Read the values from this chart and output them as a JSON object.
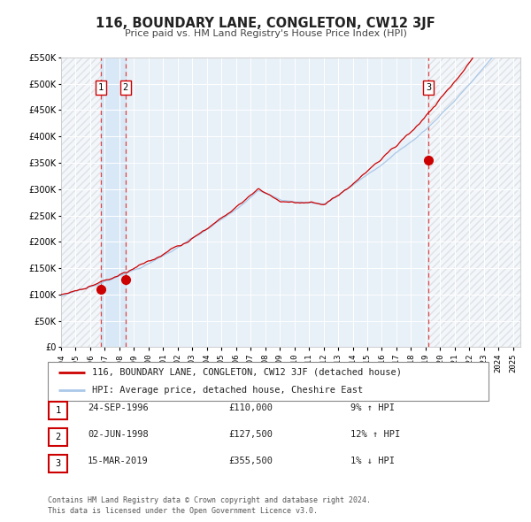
{
  "title": "116, BOUNDARY LANE, CONGLETON, CW12 3JF",
  "subtitle": "Price paid vs. HM Land Registry's House Price Index (HPI)",
  "xmin": 1994.0,
  "xmax": 2025.5,
  "ymin": 0,
  "ymax": 550000,
  "yticks": [
    0,
    50000,
    100000,
    150000,
    200000,
    250000,
    300000,
    350000,
    400000,
    450000,
    500000,
    550000
  ],
  "ytick_labels": [
    "£0",
    "£50K",
    "£100K",
    "£150K",
    "£200K",
    "£250K",
    "£300K",
    "£350K",
    "£400K",
    "£450K",
    "£500K",
    "£550K"
  ],
  "xticks": [
    1994,
    1995,
    1996,
    1997,
    1998,
    1999,
    2000,
    2001,
    2002,
    2003,
    2004,
    2005,
    2006,
    2007,
    2008,
    2009,
    2010,
    2011,
    2012,
    2013,
    2014,
    2015,
    2016,
    2017,
    2018,
    2019,
    2020,
    2021,
    2022,
    2023,
    2024,
    2025
  ],
  "bg_color": "#e8f0f8",
  "grid_color": "#ffffff",
  "sale_color": "#cc0000",
  "hpi_color": "#aac8e8",
  "vline_color": "#dd4444",
  "marker_color": "#cc0000",
  "shade_between_color": "#d0e4f5",
  "transactions": [
    {
      "date_dec": 1996.73,
      "price": 110000,
      "label": "1"
    },
    {
      "date_dec": 1998.42,
      "price": 127500,
      "label": "2"
    },
    {
      "date_dec": 2019.2,
      "price": 355500,
      "label": "3"
    }
  ],
  "legend_entries": [
    {
      "label": "116, BOUNDARY LANE, CONGLETON, CW12 3JF (detached house)",
      "color": "#cc0000"
    },
    {
      "label": "HPI: Average price, detached house, Cheshire East",
      "color": "#aac8e8"
    }
  ],
  "table_rows": [
    {
      "num": "1",
      "date": "24-SEP-1996",
      "price": "£110,000",
      "change": "9% ↑ HPI"
    },
    {
      "num": "2",
      "date": "02-JUN-1998",
      "price": "£127,500",
      "change": "12% ↑ HPI"
    },
    {
      "num": "3",
      "date": "15-MAR-2019",
      "price": "£355,500",
      "change": "1% ↓ HPI"
    }
  ],
  "footer": "Contains HM Land Registry data © Crown copyright and database right 2024.\nThis data is licensed under the Open Government Licence v3.0."
}
